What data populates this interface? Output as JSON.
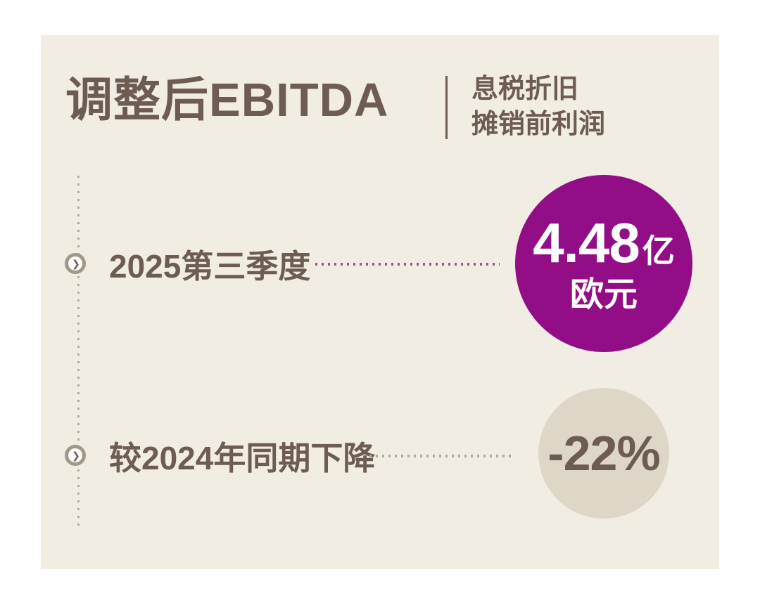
{
  "header": {
    "title": "调整后EBITDA",
    "subtitle_line1": "息税折旧",
    "subtitle_line2": "摊销前利润"
  },
  "rows": [
    {
      "label": "2025第三季度",
      "value_main": "4.48",
      "value_unit": "亿",
      "value_sub": "欧元"
    },
    {
      "label": "较2024年同期下降",
      "value": "-22%"
    }
  ],
  "icons": {
    "chevron_right": "❯"
  },
  "colors": {
    "card_bg": "#f1ede3",
    "text_brown": "#6e5c52",
    "accent_purple": "#930d87",
    "circle_beige": "#ded7c8",
    "dots_gray": "#b3aa9d",
    "dots_purple": "#a34f9e",
    "bullet_ring": "#a29889"
  },
  "chart_data": {
    "type": "table",
    "title": "调整后EBITDA（息税折旧摊销前利润）",
    "rows": [
      {
        "label": "2025第三季度",
        "value": "4.48亿欧元"
      },
      {
        "label": "较2024年同期下降",
        "value": "-22%"
      }
    ],
    "notes": "KPI infographic card: Q3 2025 adjusted EBITDA of 448 million euros, down 22% year-over-year vs 2024"
  }
}
